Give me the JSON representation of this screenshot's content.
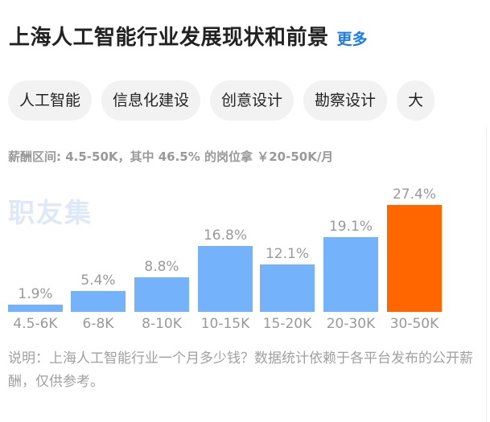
{
  "header": {
    "title": "上海人工智能行业发展现状和前景",
    "more_label": "更多",
    "more_color": "#1a7cf5"
  },
  "tags": [
    "人工智能",
    "信息化建设",
    "创意设计",
    "勘察设计",
    "大"
  ],
  "summary": "薪酬区间: 4.5-50K，其中 46.5% 的岗位拿 ￥20-50K/月",
  "watermark": "职友集",
  "note": "说明：上海人工智能行业一个月多少钱？数据统计依赖于各平台发布的公开薪酬，仅供参考。",
  "colors": {
    "bar": "#74b2fc",
    "highlight": "#ff6600"
  },
  "chart_data": {
    "type": "bar",
    "title": "",
    "xlabel": "",
    "ylabel": "",
    "categories": [
      "4.5-6K",
      "6-8K",
      "8-10K",
      "10-15K",
      "15-20K",
      "20-30K",
      "30-50K"
    ],
    "values": [
      1.9,
      5.4,
      8.8,
      16.8,
      12.1,
      19.1,
      27.4
    ],
    "labels": [
      "1.9%",
      "5.4%",
      "8.8%",
      "16.8%",
      "12.1%",
      "19.1%",
      "27.4%"
    ],
    "highlight_index": 6,
    "ylim": [
      0,
      27.4
    ],
    "grid": false,
    "legend": null
  }
}
